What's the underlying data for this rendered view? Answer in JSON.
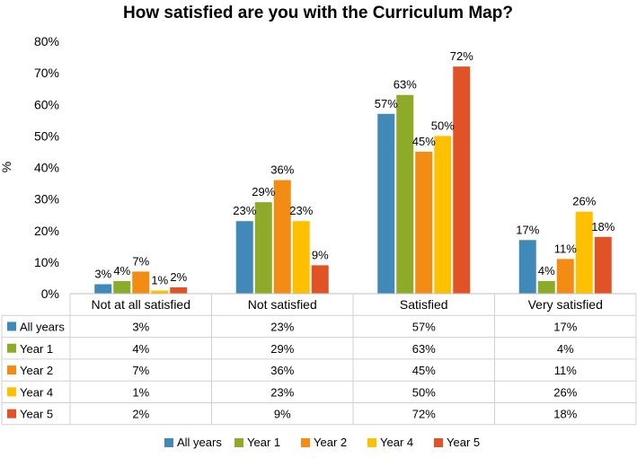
{
  "chart_data": {
    "type": "bar",
    "title": "How satisfied are you with the Curriculum Map?",
    "ylabel": "%",
    "xlabel": "",
    "ylim": [
      0,
      80
    ],
    "yticks": [
      "0%",
      "10%",
      "20%",
      "30%",
      "40%",
      "50%",
      "60%",
      "70%",
      "80%"
    ],
    "ytick_values": [
      0,
      10,
      20,
      30,
      40,
      50,
      60,
      70,
      80
    ],
    "categories": [
      "Not at all satisfied",
      "Not satisfied",
      "Satisfied",
      "Very satisfied"
    ],
    "series": [
      {
        "name": "All years",
        "color": "#4189B8",
        "values": [
          3,
          23,
          57,
          17
        ],
        "labels": [
          "3%",
          "23%",
          "57%",
          "17%"
        ]
      },
      {
        "name": "Year 1",
        "color": "#8DAA28",
        "values": [
          4,
          29,
          63,
          4
        ],
        "labels": [
          "4%",
          "29%",
          "63%",
          "4%"
        ]
      },
      {
        "name": "Year 2",
        "color": "#F28C12",
        "values": [
          7,
          36,
          45,
          11
        ],
        "labels": [
          "7%",
          "36%",
          "45%",
          "11%"
        ]
      },
      {
        "name": "Year 4",
        "color": "#FFC000",
        "values": [
          1,
          23,
          50,
          26
        ],
        "labels": [
          "1%",
          "23%",
          "50%",
          "26%"
        ]
      },
      {
        "name": "Year 5",
        "color": "#E05326",
        "values": [
          2,
          9,
          72,
          18
        ],
        "labels": [
          "2%",
          "9%",
          "72%",
          "18%"
        ]
      }
    ],
    "legend_position": "bottom",
    "grid": false,
    "data_table": true
  }
}
